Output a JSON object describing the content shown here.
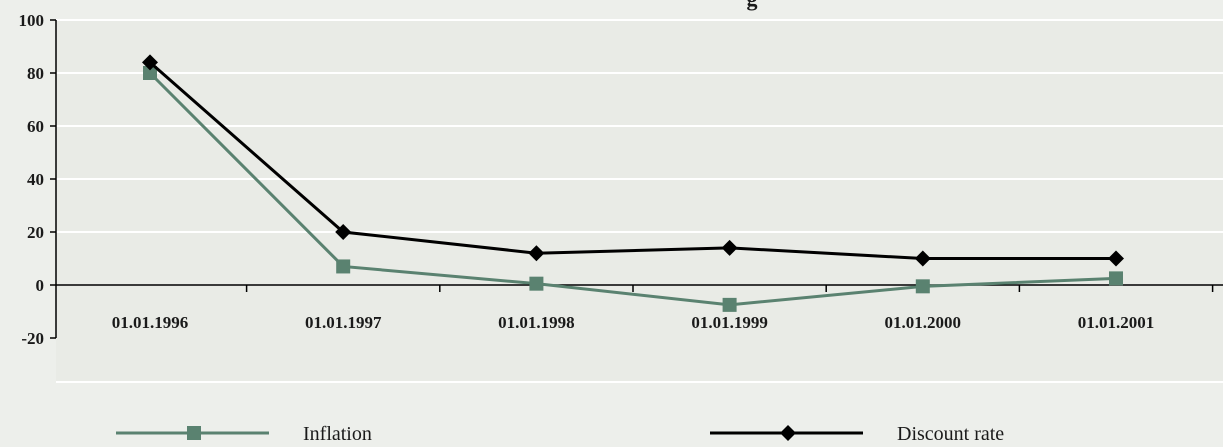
{
  "chart_data": {
    "type": "line",
    "title": "g",
    "categories": [
      "01.01.1996",
      "01.01.1997",
      "01.01.1998",
      "01.01.1999",
      "01.01.2000",
      "01.01.2001"
    ],
    "y_ticks": [
      "100",
      "80",
      "60",
      "40",
      "20",
      "0",
      "-20"
    ],
    "ylim": [
      -20,
      100
    ],
    "grid": true,
    "legend_position": "bottom",
    "series": [
      {
        "name": "Inflation",
        "values": [
          80,
          7,
          0.5,
          -7.5,
          -0.5,
          2.5
        ],
        "color": "#5a8270",
        "marker": "square"
      },
      {
        "name": "Discount rate",
        "values": [
          84,
          20,
          12,
          14,
          10,
          10
        ],
        "color": "#000000",
        "marker": "diamond"
      }
    ]
  }
}
